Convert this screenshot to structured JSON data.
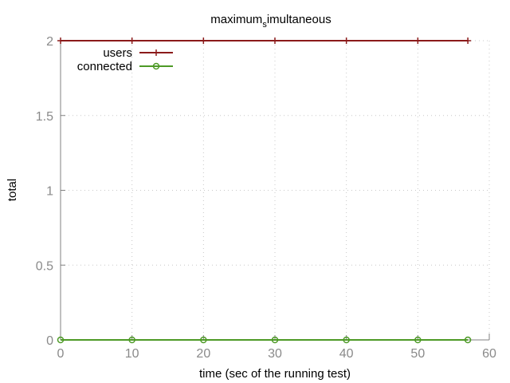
{
  "chart_data": {
    "type": "line",
    "title_main": "maximum",
    "title_sub": "s",
    "title_tail": "imultaneous",
    "xlabel": "time (sec of the running test)",
    "ylabel": "total",
    "xlim": [
      0,
      60
    ],
    "ylim": [
      0,
      2
    ],
    "x_ticks": [
      0,
      10,
      20,
      30,
      40,
      50,
      60
    ],
    "x_tick_labels": [
      "0",
      "10",
      "20",
      "30",
      "40",
      "50",
      "60"
    ],
    "y_ticks": [
      0,
      0.5,
      1,
      1.5,
      2
    ],
    "y_tick_labels": [
      "0",
      "0.5",
      "1",
      "1.5",
      "2"
    ],
    "grid": true,
    "legend_position": "top-left",
    "series": [
      {
        "name": "users",
        "color": "#8b1a1a",
        "marker": "plus",
        "x": [
          0,
          10,
          20,
          30,
          40,
          50,
          57
        ],
        "y": [
          2,
          2,
          2,
          2,
          2,
          2,
          2
        ]
      },
      {
        "name": "connected",
        "color": "#4d9a26",
        "marker": "circle",
        "x": [
          0,
          10,
          20,
          30,
          40,
          50,
          57
        ],
        "y": [
          0,
          0,
          0,
          0,
          0,
          0,
          0
        ]
      }
    ]
  }
}
